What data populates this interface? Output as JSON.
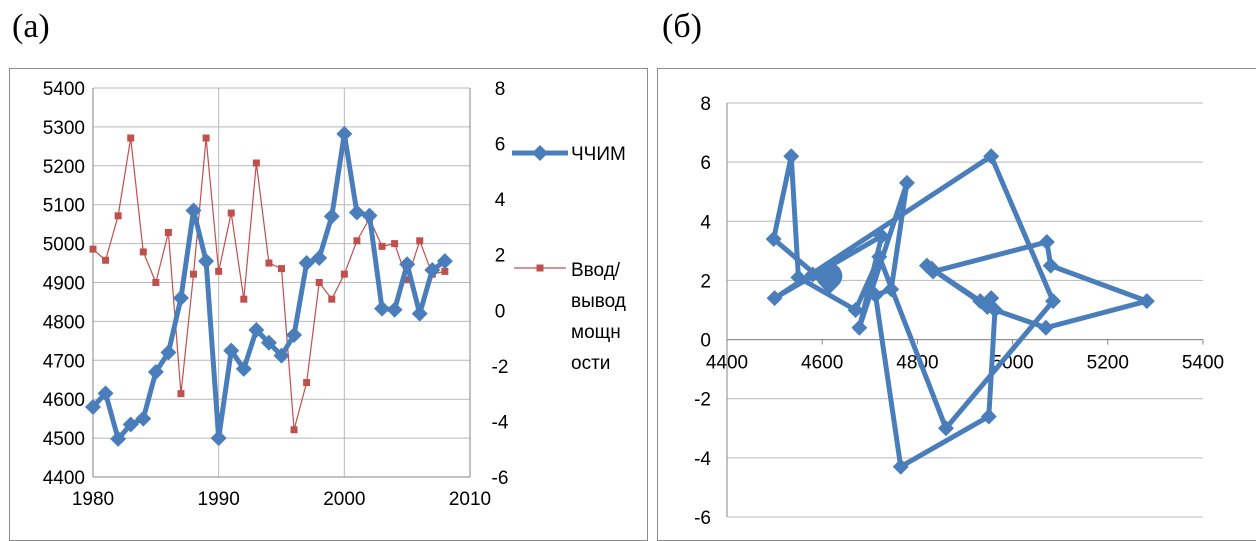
{
  "panels": {
    "a_label": "(а)",
    "b_label": "(б)"
  },
  "colors": {
    "series1": "#4a7ebb",
    "series2": "#c0504d",
    "grid": "#b9b9b9",
    "axis": "#868686"
  },
  "chart_data": [
    {
      "type": "line",
      "x": [
        1980,
        1981,
        1982,
        1983,
        1984,
        1985,
        1986,
        1987,
        1988,
        1989,
        1990,
        1991,
        1992,
        1993,
        1994,
        1995,
        1996,
        1997,
        1998,
        1999,
        2000,
        2001,
        2002,
        2003,
        2004,
        2005,
        2006,
        2007,
        2008
      ],
      "series": [
        {
          "name": "ЧЧИМ",
          "axis": "left",
          "values": [
            4580,
            4615,
            4498,
            4535,
            4550,
            4670,
            4720,
            4860,
            5085,
            4955,
            4500,
            4725,
            4678,
            4778,
            4745,
            4712,
            4765,
            4950,
            4963,
            5070,
            5282,
            5080,
            5072,
            4833,
            4830,
            4947,
            4820,
            4932,
            4955
          ]
        },
        {
          "name": "Ввод/вывод мощности",
          "axis": "right",
          "values": [
            2.2,
            1.8,
            3.4,
            6.2,
            2.1,
            1.0,
            2.8,
            -3.0,
            1.3,
            6.2,
            1.4,
            3.5,
            0.4,
            5.3,
            1.7,
            1.5,
            -4.3,
            -2.6,
            1.0,
            0.4,
            1.3,
            2.5,
            3.3,
            2.3,
            2.4,
            1.1,
            2.5,
            1.3,
            1.4
          ]
        }
      ],
      "xlim": [
        1980,
        2010
      ],
      "xticks": [
        "1980",
        "1990",
        "2000",
        "2010"
      ],
      "ylim": [
        4400,
        5400
      ],
      "yticks": [
        "5400",
        "5300",
        "5200",
        "5100",
        "5000",
        "4900",
        "4800",
        "4700",
        "4600",
        "4500",
        "4400"
      ],
      "y2lim": [
        -6,
        8
      ],
      "y2ticks": [
        "8",
        "6",
        "4",
        "2",
        "0",
        "-2",
        "-4",
        "-6"
      ],
      "legend": [
        "ЧЧИМ",
        "Ввод/",
        "вывод",
        "мощн",
        "ости"
      ],
      "legend_position": "right",
      "grid": true
    },
    {
      "type": "scatter",
      "mode": "connected",
      "x": [
        4580,
        4615,
        4498,
        4535,
        4550,
        4670,
        4720,
        4860,
        5085,
        4955,
        4500,
        4725,
        4678,
        4778,
        4745,
        4712,
        4765,
        4950,
        4963,
        5070,
        5282,
        5080,
        5072,
        4833,
        4830,
        4947,
        4820,
        4932,
        4955
      ],
      "y": [
        2.2,
        1.8,
        3.4,
        6.2,
        2.1,
        1.0,
        2.8,
        -3.0,
        1.3,
        6.2,
        1.4,
        3.5,
        0.4,
        5.3,
        1.7,
        1.5,
        -4.3,
        -2.6,
        1.0,
        0.4,
        1.3,
        2.5,
        3.3,
        2.3,
        2.4,
        1.1,
        2.5,
        1.3,
        1.4
      ],
      "highlight_point": [
        4615,
        2.15
      ],
      "xlim": [
        4400,
        5400
      ],
      "xticks": [
        "4400",
        "4600",
        "4800",
        "5000",
        "5200",
        "5400"
      ],
      "ylim": [
        -6,
        8
      ],
      "yticks": [
        "8",
        "6",
        "4",
        "2",
        "0",
        "-2",
        "-4",
        "-6"
      ],
      "grid": true
    }
  ]
}
